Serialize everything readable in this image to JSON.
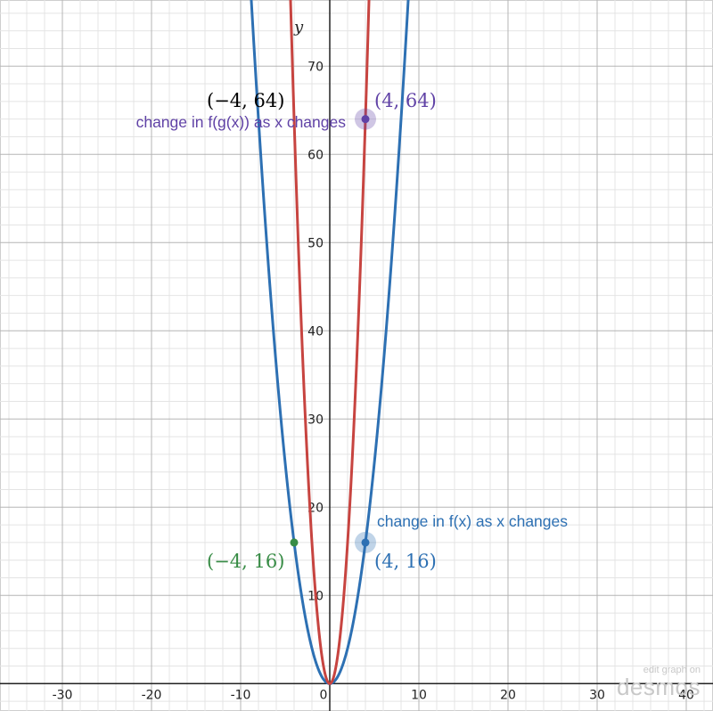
{
  "chart_data": {
    "type": "line",
    "axis": {
      "y_label": "y",
      "xlim": [
        -37,
        43
      ],
      "ylim": [
        -3.1,
        77.5
      ],
      "x_ticks": [
        -30,
        -20,
        -10,
        0,
        10,
        20,
        30,
        40
      ],
      "x_tick_labels": [
        "-30",
        "-20",
        "-10",
        "0",
        "10",
        "20",
        "30",
        "40"
      ],
      "y_ticks": [
        10,
        20,
        30,
        40,
        50,
        60,
        70
      ],
      "y_tick_labels": [
        "10",
        "20",
        "30",
        "40",
        "50",
        "60",
        "70"
      ],
      "minor_step": 2,
      "major_step": 10,
      "grid": true
    },
    "series": [
      {
        "formula": "y = x^2",
        "color": "#2d70b3",
        "x_range": [
          -9,
          9
        ]
      },
      {
        "formula": "y = 4x^2",
        "color": "#c74440",
        "x_range": [
          -4.5,
          4.5
        ]
      }
    ],
    "points": [
      {
        "x": 4,
        "y": 64,
        "color": "#6042a6",
        "highlight": true
      },
      {
        "x": 4,
        "y": 16,
        "color": "#2d70b3",
        "highlight": true
      },
      {
        "x": -4,
        "y": 16,
        "color": "#388c46",
        "highlight": false
      }
    ],
    "labels": [
      {
        "text": "(−4, 64)",
        "color": "#000000"
      },
      {
        "text": "(4, 64)",
        "color": "#6042a6"
      },
      {
        "text": "change in f(g(x)) as x changes",
        "color": "#6042a6"
      },
      {
        "text": "change in f(x) as x changes",
        "color": "#2d70b3"
      },
      {
        "text": "(4, 16)",
        "color": "#2d70b3"
      },
      {
        "text": "(−4, 16)",
        "color": "#388c46"
      }
    ]
  },
  "watermark": {
    "line1": "edit graph on",
    "line2": "desmos"
  }
}
